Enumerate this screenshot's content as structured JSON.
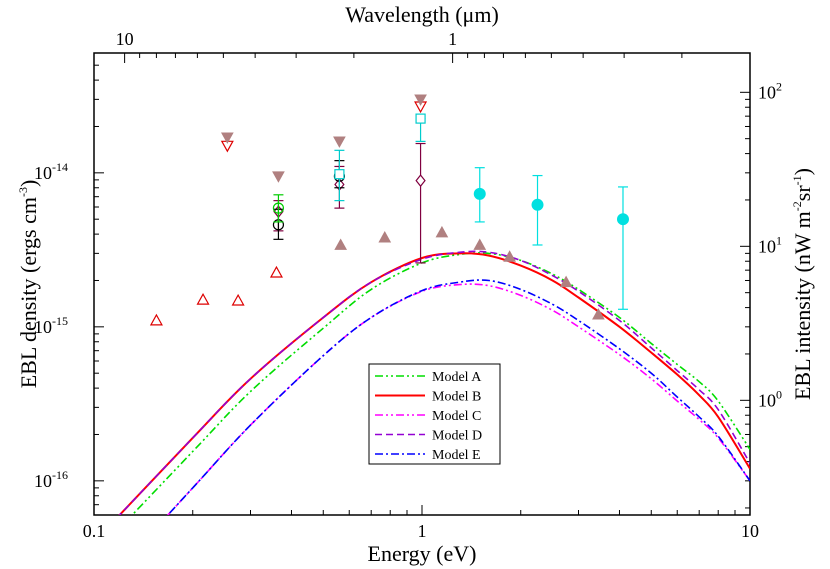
{
  "chart_data": {
    "type": "line",
    "title": "",
    "xlabel": "Energy (eV)",
    "ylabel": "EBL density (ergs cm",
    "ylabel_exp": "-3",
    "ylabel_close": ")",
    "top_xlabel": "Wavelength (μm)",
    "right_ylabel": "EBL intensity (nW m",
    "right_ylabel_exp1": "-2",
    "right_ylabel_mid": "sr",
    "right_ylabel_exp2": "-1",
    "right_ylabel_close": ")",
    "xscale": "log",
    "yscale": "log",
    "xlim": [
      0.1,
      10
    ],
    "ylim": [
      6e-17,
      6e-14
    ],
    "x_ticks": [
      "0.1",
      "1",
      "10"
    ],
    "x_tick_values": [
      0.1,
      1,
      10
    ],
    "y_ticks": [
      {
        "base": "10",
        "exp": "-16",
        "value": 1e-16
      },
      {
        "base": "10",
        "exp": "-15",
        "value": 1e-15
      },
      {
        "base": "10",
        "exp": "-14",
        "value": 1e-14
      }
    ],
    "top_ticks": [
      {
        "label": "10",
        "wavelength_um": 10
      },
      {
        "label": "1",
        "wavelength_um": 1
      }
    ],
    "right_ticks": [
      {
        "base": "10",
        "exp": "0",
        "value": 1
      },
      {
        "base": "10",
        "exp": "1",
        "value": 10
      },
      {
        "base": "10",
        "exp": "2",
        "value": 100
      }
    ],
    "legend_position": "bottom-center",
    "series": [
      {
        "name": "Model A",
        "color": "#00dd00",
        "dash": "dashdotdot",
        "x": [
          0.1,
          0.2,
          0.3,
          0.5,
          0.7,
          1.0,
          1.3,
          1.6,
          2.0,
          2.5,
          3.0,
          4.0,
          5.0,
          6.0,
          7.0,
          8.0,
          10.0
        ],
        "y": [
          3.3e-17,
          1.55e-16,
          3.8e-16,
          9.8e-16,
          1.75e-15,
          2.6e-15,
          2.95e-15,
          3e-15,
          2.7e-15,
          2.2e-15,
          1.75e-15,
          1.15e-15,
          7.8e-16,
          5.7e-16,
          4.4e-16,
          3.3e-16,
          1.6e-16
        ]
      },
      {
        "name": "Model B",
        "color": "#ff0000",
        "dash": "solid",
        "x": [
          0.1,
          0.2,
          0.3,
          0.5,
          0.7,
          1.0,
          1.3,
          1.6,
          2.0,
          2.5,
          3.0,
          4.0,
          5.0,
          6.0,
          7.0,
          8.0,
          10.0
        ],
        "y": [
          4e-17,
          1.9e-16,
          4.6e-16,
          1.15e-15,
          1.95e-15,
          2.8e-15,
          3e-15,
          2.9e-15,
          2.5e-15,
          2e-15,
          1.55e-15,
          1e-15,
          6.8e-16,
          4.9e-16,
          3.6e-16,
          2.6e-16,
          1.2e-16
        ]
      },
      {
        "name": "Model C",
        "color": "#ff00ff",
        "dash": "dashdotdot",
        "x": [
          0.1,
          0.2,
          0.3,
          0.5,
          0.7,
          1.0,
          1.3,
          1.6,
          2.0,
          2.5,
          3.0,
          4.0,
          5.0,
          6.0,
          7.0,
          8.0,
          10.0
        ],
        "y": [
          1.8e-17,
          9e-17,
          2.3e-16,
          6.5e-16,
          1.15e-15,
          1.7e-15,
          1.88e-15,
          1.85e-15,
          1.6e-15,
          1.28e-15,
          1e-15,
          6.6e-16,
          4.6e-16,
          3.3e-16,
          2.5e-16,
          1.9e-16,
          1e-16
        ]
      },
      {
        "name": "Model D",
        "color": "#9400d3",
        "dash": "dashed",
        "x": [
          0.1,
          0.2,
          0.3,
          0.5,
          0.7,
          1.0,
          1.3,
          1.6,
          2.0,
          2.5,
          3.0,
          4.0,
          5.0,
          6.0,
          7.0,
          8.0,
          10.0
        ],
        "y": [
          4e-17,
          1.9e-16,
          4.6e-16,
          1.15e-15,
          1.95e-15,
          2.75e-15,
          3.05e-15,
          3.05e-15,
          2.7e-15,
          2.15e-15,
          1.7e-15,
          1.1e-15,
          7.3e-16,
          5.2e-16,
          3.9e-16,
          2.9e-16,
          1.3e-16
        ]
      },
      {
        "name": "Model E",
        "color": "#0000ff",
        "dash": "dashdot",
        "x": [
          0.1,
          0.2,
          0.3,
          0.5,
          0.7,
          1.0,
          1.3,
          1.6,
          2.0,
          2.5,
          3.0,
          4.0,
          5.0,
          6.0,
          7.0,
          8.0,
          10.0
        ],
        "y": [
          1.8e-17,
          9e-17,
          2.3e-16,
          6.5e-16,
          1.15e-15,
          1.72e-15,
          1.95e-15,
          2e-15,
          1.75e-15,
          1.4e-15,
          1.1e-15,
          7.2e-16,
          5e-16,
          3.5e-16,
          2.6e-16,
          1.95e-16,
          1e-16
        ]
      }
    ],
    "points": [
      {
        "marker": "tri-up-open",
        "color": "#dd0000",
        "x": 0.155,
        "y": 1.1e-15
      },
      {
        "marker": "tri-up-open",
        "color": "#dd0000",
        "x": 0.215,
        "y": 1.5e-15
      },
      {
        "marker": "tri-up-open",
        "color": "#dd0000",
        "x": 0.275,
        "y": 1.48e-15
      },
      {
        "marker": "tri-up-open",
        "color": "#dd0000",
        "x": 0.36,
        "y": 2.25e-15
      },
      {
        "marker": "tri-down-open",
        "color": "#dd0000",
        "x": 0.255,
        "y": 1.5e-14
      },
      {
        "marker": "tri-down-open",
        "color": "#dd0000",
        "x": 0.99,
        "y": 2.7e-14
      },
      {
        "marker": "tri-down-fill",
        "color": "#b08080",
        "x": 0.255,
        "y": 1.7e-14
      },
      {
        "marker": "tri-down-fill",
        "color": "#b08080",
        "x": 0.365,
        "y": 9.5e-15
      },
      {
        "marker": "tri-down-fill",
        "color": "#b08080",
        "x": 0.56,
        "y": 1.6e-14
      },
      {
        "marker": "tri-down-fill",
        "color": "#b08080",
        "x": 0.99,
        "y": 3e-14
      },
      {
        "marker": "tri-up-fill",
        "color": "#b08080",
        "x": 0.565,
        "y": 3.4e-15
      },
      {
        "marker": "tri-up-fill",
        "color": "#b08080",
        "x": 0.77,
        "y": 3.8e-15
      },
      {
        "marker": "tri-up-fill",
        "color": "#b08080",
        "x": 1.15,
        "y": 4.1e-15
      },
      {
        "marker": "tri-up-fill",
        "color": "#b08080",
        "x": 1.5,
        "y": 3.4e-15
      },
      {
        "marker": "tri-up-fill",
        "color": "#b08080",
        "x": 1.85,
        "y": 2.85e-15
      },
      {
        "marker": "tri-up-fill",
        "color": "#b08080",
        "x": 2.75,
        "y": 1.95e-15
      },
      {
        "marker": "tri-up-fill",
        "color": "#b08080",
        "x": 3.45,
        "y": 1.2e-15
      },
      {
        "marker": "diamond-open",
        "color": "#800040",
        "x": 0.365,
        "y": 5.6e-15,
        "ylo": 4.2e-15,
        "yhi": 6.6e-15
      },
      {
        "marker": "diamond-open",
        "color": "#800040",
        "x": 0.56,
        "y": 8.4e-15,
        "ylo": 5.9e-15,
        "yhi": 1.1e-14
      },
      {
        "marker": "diamond-open",
        "color": "#800040",
        "x": 0.99,
        "y": 8.9e-15,
        "ylo": 2.6e-15,
        "yhi": 1.55e-14
      },
      {
        "marker": "circle-open",
        "color": "#000000",
        "x": 0.365,
        "y": 4.6e-15,
        "ylo": 3.7e-15,
        "yhi": 5.8e-15
      },
      {
        "marker": "circle-open",
        "color": "#000000",
        "x": 0.56,
        "y": 9.5e-15,
        "ylo": 8e-15,
        "yhi": 1.2e-14
      },
      {
        "marker": "circle-open",
        "color": "#00cc00",
        "x": 0.365,
        "y": 5.9e-15,
        "ylo": 4.8e-15,
        "yhi": 7.2e-15
      },
      {
        "marker": "square-open",
        "color": "#00cccc",
        "x": 0.56,
        "y": 9.8e-15,
        "ylo": 6.6e-15,
        "yhi": 1.4e-14
      },
      {
        "marker": "square-open",
        "color": "#00cccc",
        "x": 0.99,
        "y": 2.25e-14,
        "ylo": 1.6e-14,
        "yhi": 2.25e-14
      },
      {
        "marker": "circle-fill",
        "color": "#00e0e0",
        "x": 1.5,
        "y": 7.3e-15,
        "ylo": 4.8e-15,
        "yhi": 1.08e-14
      },
      {
        "marker": "circle-fill",
        "color": "#00e0e0",
        "x": 2.25,
        "y": 6.2e-15,
        "ylo": 3.4e-15,
        "yhi": 9.6e-15
      },
      {
        "marker": "circle-fill",
        "color": "#00e0e0",
        "x": 4.1,
        "y": 5e-15,
        "ylo": 1.3e-15,
        "yhi": 8.1e-15
      }
    ]
  }
}
